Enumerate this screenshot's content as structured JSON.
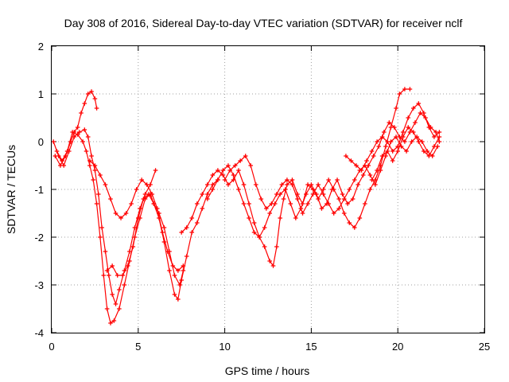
{
  "chart_data": {
    "type": "scatter",
    "title": "Day 308 of 2016, Sidereal Day-to-day VTEC variation (SDTVAR) for receiver nclf",
    "xlabel": "GPS time / hours",
    "ylabel": "SDTVAR / TECUs",
    "xlim": [
      0,
      25
    ],
    "ylim": [
      -4,
      2
    ],
    "xticks": [
      0,
      5,
      10,
      15,
      20,
      25
    ],
    "yticks": [
      -4,
      -3,
      -2,
      -1,
      0,
      1,
      2
    ],
    "grid": true,
    "marker": "plus",
    "color": "#ff0000",
    "series": [
      {
        "points": [
          [
            0.1,
            0.0
          ],
          [
            0.4,
            -0.3
          ],
          [
            0.7,
            -0.5
          ],
          [
            1.0,
            -0.2
          ],
          [
            1.3,
            0.1
          ],
          [
            1.6,
            0.2
          ],
          [
            1.9,
            0.25
          ],
          [
            2.1,
            0.1
          ],
          [
            2.3,
            -0.3
          ],
          [
            2.5,
            -0.6
          ],
          [
            2.7,
            -1.1
          ],
          [
            2.9,
            -1.8
          ],
          [
            3.1,
            -2.3
          ],
          [
            3.3,
            -2.8
          ],
          [
            3.5,
            -3.2
          ],
          [
            3.7,
            -3.4
          ],
          [
            3.9,
            -3.1
          ],
          [
            4.2,
            -2.7
          ],
          [
            4.5,
            -2.3
          ],
          [
            4.8,
            -1.8
          ],
          [
            5.1,
            -1.4
          ],
          [
            5.4,
            -1.1
          ],
          [
            5.7,
            -0.9
          ],
          [
            6.0,
            -0.6
          ]
        ]
      },
      {
        "points": [
          [
            0.2,
            -0.3
          ],
          [
            0.5,
            -0.5
          ],
          [
            0.8,
            -0.3
          ],
          [
            1.1,
            0.0
          ],
          [
            1.3,
            0.2
          ],
          [
            1.5,
            0.3
          ],
          [
            1.7,
            0.6
          ],
          [
            1.9,
            0.8
          ],
          [
            2.1,
            1.0
          ],
          [
            2.3,
            1.05
          ],
          [
            2.5,
            0.9
          ],
          [
            2.6,
            0.7
          ]
        ]
      },
      {
        "points": [
          [
            0.3,
            -0.2
          ],
          [
            0.6,
            -0.4
          ],
          [
            0.9,
            -0.2
          ],
          [
            1.2,
            0.2
          ],
          [
            1.5,
            0.15
          ],
          [
            1.8,
            0.0
          ],
          [
            2.0,
            -0.2
          ],
          [
            2.2,
            -0.5
          ],
          [
            2.4,
            -0.8
          ],
          [
            2.6,
            -1.3
          ],
          [
            2.8,
            -2.0
          ],
          [
            3.0,
            -2.8
          ],
          [
            3.2,
            -3.5
          ],
          [
            3.4,
            -3.8
          ],
          [
            3.6,
            -3.75
          ],
          [
            3.9,
            -3.5
          ],
          [
            4.2,
            -3.0
          ],
          [
            4.5,
            -2.5
          ],
          [
            4.8,
            -2.0
          ],
          [
            5.1,
            -1.6
          ],
          [
            5.4,
            -1.2
          ],
          [
            5.7,
            -1.1
          ],
          [
            5.9,
            -1.3
          ],
          [
            6.2,
            -1.6
          ],
          [
            6.5,
            -2.1
          ],
          [
            6.8,
            -2.7
          ],
          [
            7.1,
            -3.2
          ],
          [
            7.3,
            -3.3
          ],
          [
            7.5,
            -2.9
          ],
          [
            7.8,
            -2.4
          ],
          [
            8.1,
            -1.9
          ],
          [
            8.4,
            -1.7
          ],
          [
            8.7,
            -1.4
          ],
          [
            9.0,
            -1.1
          ],
          [
            9.3,
            -0.9
          ],
          [
            9.6,
            -0.8
          ]
        ]
      },
      {
        "points": [
          [
            2.2,
            -0.4
          ],
          [
            2.5,
            -0.5
          ],
          [
            2.8,
            -0.7
          ],
          [
            3.1,
            -0.9
          ],
          [
            3.4,
            -1.2
          ],
          [
            3.7,
            -1.5
          ],
          [
            4.0,
            -1.6
          ],
          [
            4.3,
            -1.5
          ],
          [
            4.6,
            -1.3
          ],
          [
            4.9,
            -1.0
          ],
          [
            5.2,
            -0.8
          ],
          [
            5.5,
            -0.9
          ],
          [
            5.8,
            -1.1
          ],
          [
            6.1,
            -1.4
          ],
          [
            6.4,
            -1.9
          ],
          [
            6.7,
            -2.3
          ],
          [
            7.0,
            -2.6
          ],
          [
            7.3,
            -2.7
          ],
          [
            7.6,
            -2.6
          ]
        ]
      },
      {
        "points": [
          [
            3.2,
            -2.7
          ],
          [
            3.5,
            -2.6
          ],
          [
            3.8,
            -2.8
          ],
          [
            4.1,
            -2.8
          ],
          [
            4.4,
            -2.6
          ],
          [
            4.7,
            -2.2
          ],
          [
            5.0,
            -1.6
          ],
          [
            5.3,
            -1.2
          ],
          [
            5.6,
            -1.1
          ],
          [
            5.9,
            -1.3
          ],
          [
            6.2,
            -1.5
          ],
          [
            6.5,
            -1.8
          ],
          [
            6.8,
            -2.3
          ],
          [
            7.1,
            -2.8
          ],
          [
            7.4,
            -3.0
          ],
          [
            7.6,
            -2.7
          ]
        ]
      },
      {
        "points": [
          [
            7.5,
            -1.9
          ],
          [
            7.8,
            -1.8
          ],
          [
            8.1,
            -1.6
          ],
          [
            8.4,
            -1.3
          ],
          [
            8.7,
            -1.1
          ],
          [
            9.0,
            -0.9
          ],
          [
            9.3,
            -0.7
          ],
          [
            9.6,
            -0.6
          ],
          [
            9.9,
            -0.7
          ],
          [
            10.2,
            -0.9
          ],
          [
            10.5,
            -0.8
          ],
          [
            10.8,
            -0.6
          ],
          [
            11.1,
            -0.9
          ],
          [
            11.4,
            -1.3
          ],
          [
            11.7,
            -1.7
          ],
          [
            12.0,
            -2.0
          ],
          [
            12.3,
            -2.2
          ],
          [
            12.6,
            -2.5
          ],
          [
            12.8,
            -2.6
          ],
          [
            13.0,
            -2.2
          ],
          [
            13.2,
            -1.6
          ],
          [
            13.4,
            -1.2
          ],
          [
            13.6,
            -0.9
          ],
          [
            13.9,
            -0.8
          ],
          [
            14.2,
            -1.1
          ],
          [
            14.5,
            -1.3
          ],
          [
            14.8,
            -0.9
          ],
          [
            15.1,
            -1.0
          ],
          [
            15.4,
            -1.2
          ],
          [
            15.7,
            -1.0
          ],
          [
            16.0,
            -0.8
          ],
          [
            16.3,
            -1.0
          ],
          [
            16.6,
            -1.2
          ],
          [
            16.9,
            -1.5
          ],
          [
            17.2,
            -1.7
          ],
          [
            17.5,
            -1.8
          ],
          [
            17.8,
            -1.6
          ],
          [
            18.1,
            -1.3
          ],
          [
            18.4,
            -1.0
          ],
          [
            18.7,
            -0.8
          ],
          [
            19.0,
            -0.5
          ],
          [
            19.3,
            -0.1
          ],
          [
            19.6,
            0.3
          ],
          [
            19.9,
            0.7
          ],
          [
            20.1,
            1.0
          ],
          [
            20.4,
            1.1
          ],
          [
            20.7,
            1.1
          ]
        ]
      },
      {
        "points": [
          [
            9.0,
            -1.2
          ],
          [
            9.3,
            -1.0
          ],
          [
            9.6,
            -0.8
          ],
          [
            9.9,
            -0.6
          ],
          [
            10.2,
            -0.5
          ],
          [
            10.5,
            -0.7
          ],
          [
            10.8,
            -1.0
          ],
          [
            11.1,
            -1.3
          ],
          [
            11.4,
            -1.6
          ],
          [
            11.7,
            -1.9
          ],
          [
            12.0,
            -2.0
          ],
          [
            12.3,
            -1.8
          ],
          [
            12.6,
            -1.5
          ],
          [
            12.9,
            -1.3
          ],
          [
            13.2,
            -1.1
          ],
          [
            13.5,
            -1.0
          ],
          [
            13.8,
            -1.3
          ],
          [
            14.1,
            -1.6
          ],
          [
            14.4,
            -1.4
          ],
          [
            14.7,
            -1.1
          ],
          [
            15.0,
            -0.9
          ],
          [
            15.3,
            -1.1
          ],
          [
            15.6,
            -1.4
          ],
          [
            15.9,
            -1.3
          ],
          [
            16.2,
            -1.0
          ],
          [
            16.5,
            -0.8
          ],
          [
            16.8,
            -1.1
          ],
          [
            17.1,
            -1.3
          ],
          [
            17.4,
            -1.2
          ],
          [
            17.7,
            -0.9
          ],
          [
            18.0,
            -0.7
          ],
          [
            18.3,
            -0.5
          ],
          [
            18.6,
            -0.3
          ],
          [
            18.9,
            -0.1
          ],
          [
            19.2,
            0.2
          ],
          [
            19.5,
            0.4
          ],
          [
            19.8,
            0.3
          ],
          [
            20.1,
            0.1
          ],
          [
            20.4,
            0.0
          ],
          [
            20.7,
            0.2
          ],
          [
            21.0,
            0.4
          ],
          [
            21.3,
            0.6
          ],
          [
            21.6,
            0.5
          ],
          [
            21.9,
            0.3
          ],
          [
            22.2,
            0.2
          ],
          [
            22.4,
            0.0
          ]
        ]
      },
      {
        "points": [
          [
            10.0,
            -0.8
          ],
          [
            10.3,
            -0.6
          ],
          [
            10.6,
            -0.5
          ],
          [
            10.9,
            -0.4
          ],
          [
            11.2,
            -0.3
          ],
          [
            11.5,
            -0.5
          ],
          [
            11.8,
            -0.9
          ],
          [
            12.1,
            -1.2
          ],
          [
            12.4,
            -1.4
          ],
          [
            12.7,
            -1.3
          ],
          [
            13.0,
            -1.1
          ],
          [
            13.3,
            -0.9
          ],
          [
            13.6,
            -0.8
          ],
          [
            13.9,
            -0.9
          ],
          [
            14.2,
            -1.2
          ],
          [
            14.5,
            -1.5
          ],
          [
            14.8,
            -1.3
          ],
          [
            15.1,
            -1.1
          ],
          [
            15.4,
            -0.9
          ],
          [
            15.7,
            -1.1
          ],
          [
            16.0,
            -1.3
          ],
          [
            16.3,
            -1.5
          ],
          [
            16.6,
            -1.4
          ],
          [
            16.9,
            -1.2
          ],
          [
            17.2,
            -1.0
          ],
          [
            17.5,
            -0.8
          ],
          [
            17.8,
            -0.6
          ],
          [
            18.1,
            -0.5
          ],
          [
            18.4,
            -0.7
          ],
          [
            18.7,
            -0.9
          ],
          [
            19.0,
            -0.6
          ],
          [
            19.3,
            -0.3
          ],
          [
            19.6,
            0.0
          ],
          [
            19.9,
            0.1
          ],
          [
            20.2,
            -0.1
          ],
          [
            20.5,
            -0.2
          ],
          [
            20.8,
            0.0
          ],
          [
            21.1,
            0.1
          ],
          [
            21.4,
            0.0
          ],
          [
            21.7,
            -0.2
          ],
          [
            22.0,
            -0.3
          ],
          [
            22.3,
            -0.1
          ]
        ]
      },
      {
        "points": [
          [
            17.0,
            -0.3
          ],
          [
            17.3,
            -0.4
          ],
          [
            17.6,
            -0.5
          ],
          [
            17.9,
            -0.6
          ],
          [
            18.2,
            -0.4
          ],
          [
            18.5,
            -0.2
          ],
          [
            18.8,
            0.0
          ],
          [
            19.1,
            0.1
          ],
          [
            19.4,
            0.0
          ],
          [
            19.7,
            -0.2
          ],
          [
            20.0,
            -0.1
          ],
          [
            20.3,
            0.2
          ],
          [
            20.6,
            0.5
          ],
          [
            20.9,
            0.7
          ],
          [
            21.2,
            0.8
          ],
          [
            21.5,
            0.6
          ],
          [
            21.8,
            0.3
          ],
          [
            22.1,
            0.1
          ],
          [
            22.4,
            0.2
          ]
        ]
      },
      {
        "points": [
          [
            18.5,
            -0.8
          ],
          [
            18.8,
            -0.6
          ],
          [
            19.1,
            -0.3
          ],
          [
            19.4,
            -0.2
          ],
          [
            19.7,
            -0.4
          ],
          [
            20.0,
            -0.2
          ],
          [
            20.3,
            0.1
          ],
          [
            20.6,
            0.3
          ],
          [
            20.9,
            0.2
          ],
          [
            21.2,
            0.0
          ],
          [
            21.5,
            -0.2
          ],
          [
            21.8,
            -0.3
          ],
          [
            22.1,
            -0.1
          ],
          [
            22.4,
            0.1
          ]
        ]
      }
    ]
  }
}
